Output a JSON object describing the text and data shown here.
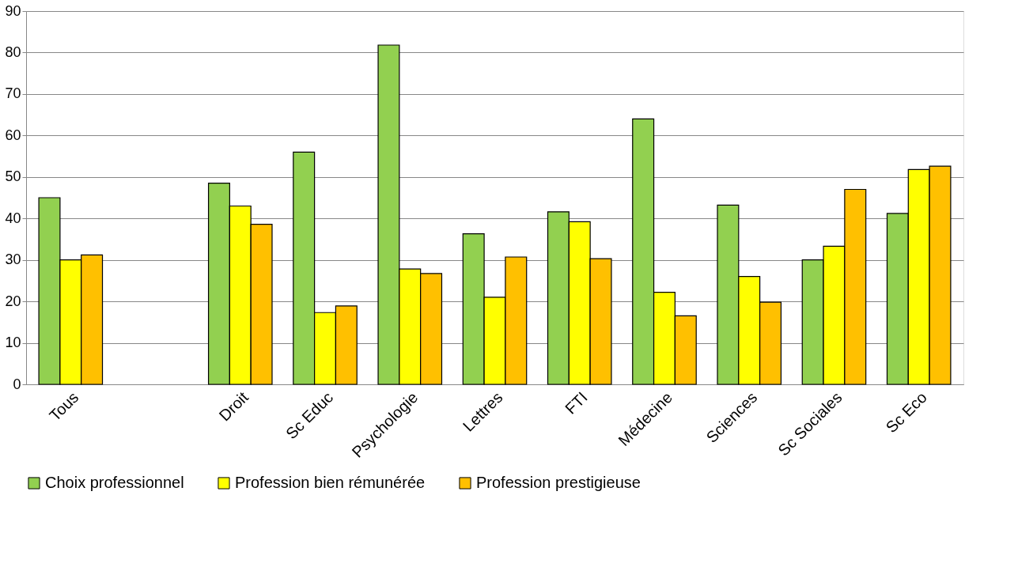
{
  "chart_data": {
    "type": "bar",
    "categories": [
      "Tous",
      null,
      "Droit",
      "Sc Educ",
      "Psychologie",
      "Lettres",
      "FTI",
      "Médecine",
      "Sciences",
      "Sc Sociales",
      "Sc Eco"
    ],
    "series": [
      {
        "name": "Choix professionnel",
        "color": "#92d050",
        "values": [
          45,
          null,
          48.5,
          56,
          81.8,
          36.3,
          41.6,
          64,
          43.2,
          30,
          41.2
        ]
      },
      {
        "name": "Profession bien rémunérée",
        "color": "#ffff00",
        "values": [
          30,
          null,
          43,
          17.3,
          27.8,
          21,
          39.2,
          22.2,
          26,
          33.3,
          51.8
        ]
      },
      {
        "name": "Profession prestigieuse",
        "color": "#ffc000",
        "values": [
          31.2,
          null,
          38.6,
          18.9,
          26.7,
          30.7,
          30.3,
          16.5,
          19.8,
          47,
          52.6
        ]
      }
    ],
    "ylim": [
      0,
      90
    ],
    "yticks": [
      0,
      10,
      20,
      30,
      40,
      50,
      60,
      70,
      80,
      90
    ],
    "grid": "y",
    "legend": "bottom"
  }
}
